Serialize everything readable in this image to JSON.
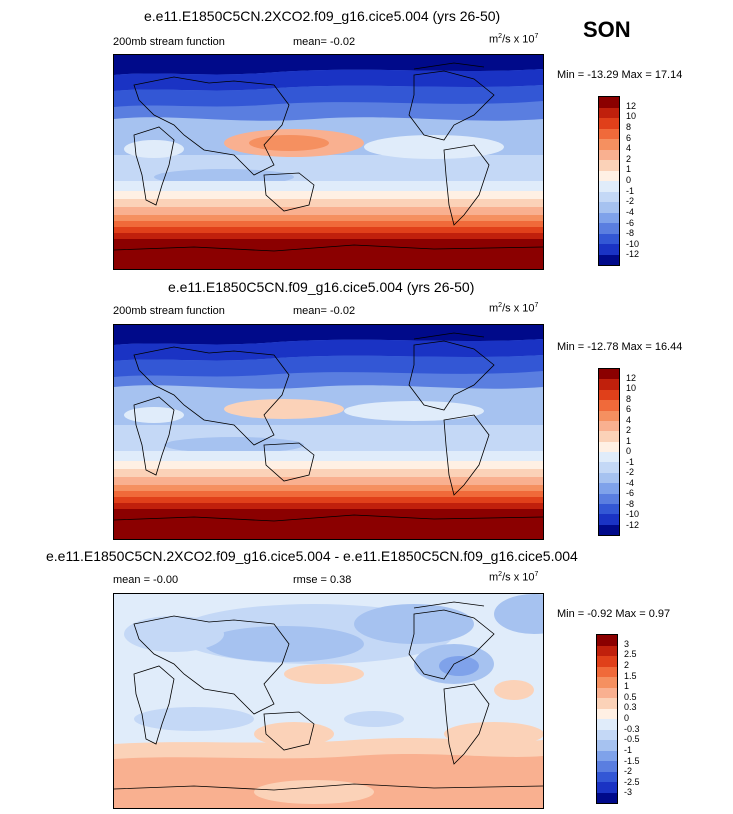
{
  "season": "SON",
  "panels": [
    {
      "title": "e.e11.E1850C5CN.2XCO2.f09_g16.cice5.004 (yrs 26-50)",
      "left_label": "200mb stream function",
      "mean_label": "mean=  -0.02",
      "units": "m²/s x 10⁷",
      "minmax": "Min = -13.29 Max =  17.14",
      "levels": [
        "12",
        "10",
        "8",
        "6",
        "4",
        "2",
        "1",
        "0",
        "-1",
        "-2",
        "-4",
        "-6",
        "-8",
        "-10",
        "-12"
      ],
      "colors": [
        "#8b0000",
        "#c0200c",
        "#e0401a",
        "#f06a3a",
        "#f59060",
        "#f9b090",
        "#fbd2b8",
        "#fff0e4",
        "#e0ecfa",
        "#c4d8f6",
        "#a6c2f0",
        "#7fa2ea",
        "#5a7ee0",
        "#3357d5",
        "#1a33c4",
        "#000a8a"
      ]
    },
    {
      "title": "e.e11.E1850C5CN.f09_g16.cice5.004 (yrs 26-50)",
      "left_label": "200mb stream function",
      "mean_label": "mean=  -0.02",
      "units": "m²/s x 10⁷",
      "minmax": "Min = -12.78 Max =  16.44",
      "levels": [
        "12",
        "10",
        "8",
        "6",
        "4",
        "2",
        "1",
        "0",
        "-1",
        "-2",
        "-4",
        "-6",
        "-8",
        "-10",
        "-12"
      ],
      "colors": [
        "#8b0000",
        "#c0200c",
        "#e0401a",
        "#f06a3a",
        "#f59060",
        "#f9b090",
        "#fbd2b8",
        "#fff0e4",
        "#e0ecfa",
        "#c4d8f6",
        "#a6c2f0",
        "#7fa2ea",
        "#5a7ee0",
        "#3357d5",
        "#1a33c4",
        "#000a8a"
      ]
    },
    {
      "title": "e.e11.E1850C5CN.2XCO2.f09_g16.cice5.004 - e.e11.E1850C5CN.f09_g16.cice5.004",
      "left_label": "mean =  -0.00",
      "mean_label": "rmse =   0.38",
      "units": "m²/s x 10⁷",
      "minmax": "Min = -0.92 Max =   0.97",
      "levels": [
        "3",
        "2.5",
        "2",
        "1.5",
        "1",
        "0.5",
        "0.3",
        "0",
        "-0.3",
        "-0.5",
        "-1",
        "-1.5",
        "-2",
        "-2.5",
        "-3"
      ],
      "colors": [
        "#8b0000",
        "#c0200c",
        "#e0401a",
        "#f06a3a",
        "#f59060",
        "#f9b090",
        "#fbd2b8",
        "#fff0e4",
        "#e0ecfa",
        "#c4d8f6",
        "#a6c2f0",
        "#7fa2ea",
        "#5a7ee0",
        "#3357d5",
        "#1a33c4",
        "#000a8a"
      ]
    }
  ]
}
